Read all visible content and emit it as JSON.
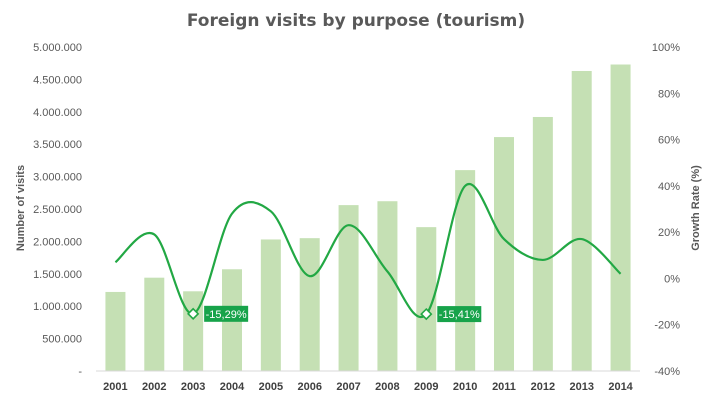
{
  "chart_data": {
    "type": "bar",
    "title": "Foreign visits by purpose (tourism)",
    "xlabel": "",
    "ylabel": "Number of visits",
    "y2label": "Growth Rate (%)",
    "categories": [
      "2001",
      "2002",
      "2003",
      "2004",
      "2005",
      "2006",
      "2007",
      "2008",
      "2009",
      "2010",
      "2011",
      "2012",
      "2013",
      "2014"
    ],
    "ylim": [
      0,
      5000000
    ],
    "y_ticks": [
      0,
      500000,
      1000000,
      1500000,
      2000000,
      2500000,
      3000000,
      3500000,
      4000000,
      4500000,
      5000000
    ],
    "y_tick_labels": [
      "-",
      "500.000",
      "1.000.000",
      "1.500.000",
      "2.000.000",
      "2.500.000",
      "3.000.000",
      "3.500.000",
      "4.000.000",
      "4.500.000",
      "5.000.000"
    ],
    "y2lim": [
      -40,
      100
    ],
    "y2_ticks": [
      -40,
      -20,
      0,
      20,
      40,
      60,
      80,
      100
    ],
    "y2_tick_labels": [
      "-40%",
      "-20%",
      "0%",
      "20%",
      "40%",
      "60%",
      "80%",
      "100%"
    ],
    "grid": false,
    "series": [
      {
        "type": "bar",
        "axis": "left",
        "color": "#c5e0b4",
        "values": [
          1220000,
          1440000,
          1230000,
          1570000,
          2030000,
          2050000,
          2560000,
          2620000,
          2220000,
          3100000,
          3610000,
          3920000,
          4630000,
          4730000
        ]
      },
      {
        "type": "line",
        "axis": "right",
        "color": "#22a844",
        "smooth": true,
        "values": [
          7,
          19,
          -15.29,
          28,
          29,
          1,
          23,
          3,
          -15.41,
          40,
          17,
          8,
          17,
          2
        ]
      }
    ],
    "annotations": [
      {
        "category": "2003",
        "value": -15.29,
        "label": "-15,29%"
      },
      {
        "category": "2009",
        "value": -15.41,
        "label": "-15,41%"
      }
    ]
  }
}
